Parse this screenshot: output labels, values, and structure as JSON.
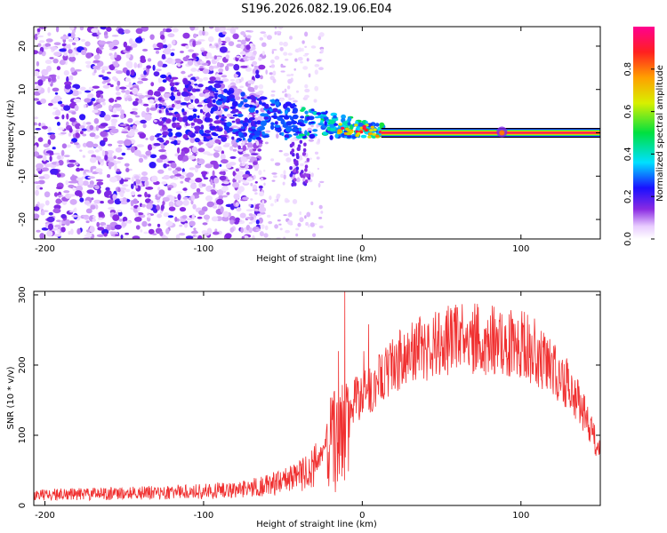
{
  "title": "S196.2026.082.19.06.E04",
  "colors": {
    "line_red": "#f03030",
    "axis": "#000000",
    "background": "#ffffff"
  },
  "chart_data": [
    {
      "type": "heatmap",
      "name": "spectrogram",
      "xlabel": "Height of straight line (km)",
      "ylabel": "Frequency (Hz)",
      "xlim": [
        -207,
        150
      ],
      "ylim": [
        -24.5,
        24.5
      ],
      "xticks": [
        -200,
        -100,
        0,
        100
      ],
      "yticks": [
        -20,
        -10,
        0,
        10,
        20
      ],
      "colorbar": {
        "label": "Normalized spectral amplitude",
        "range": [
          0,
          1
        ],
        "ticks": [
          0.0,
          0.2,
          0.4,
          0.6,
          0.8
        ]
      },
      "features": {
        "noise_region_km": [
          -207,
          -70
        ],
        "transition_region_km": [
          -70,
          12
        ],
        "tone_start_km": 12,
        "tone_end_km": 150,
        "tone_frequency_hz": 0,
        "tone_amplitude": 0.95,
        "burst_near_km": 88
      }
    },
    {
      "type": "line",
      "name": "snr",
      "xlabel": "Height of straight line (km)",
      "ylabel": "SNR (10 * v/v)",
      "xlim": [
        -207,
        150
      ],
      "ylim": [
        0,
        305
      ],
      "xticks": [
        -200,
        -100,
        0,
        100
      ],
      "yticks": [
        0,
        100,
        200,
        300
      ],
      "series": [
        {
          "name": "SNR",
          "envelope_x": [
            -207,
            -150,
            -100,
            -75,
            -60,
            -50,
            -40,
            -32,
            -25,
            -20,
            -15,
            -10,
            0,
            10,
            20,
            30,
            40,
            50,
            60,
            70,
            80,
            90,
            100,
            110,
            120,
            130,
            140,
            150
          ],
          "envelope_y": [
            15,
            17,
            20,
            23,
            28,
            35,
            42,
            50,
            75,
            130,
            140,
            145,
            155,
            175,
            200,
            215,
            225,
            232,
            235,
            237,
            238,
            236,
            230,
            218,
            200,
            170,
            130,
            75
          ],
          "spikes": [
            {
              "x": -11,
              "y": 305
            },
            {
              "x": -15,
              "y": 220
            },
            {
              "x": 1,
              "y": 220
            },
            {
              "x": 4,
              "y": 258
            }
          ]
        }
      ]
    }
  ]
}
